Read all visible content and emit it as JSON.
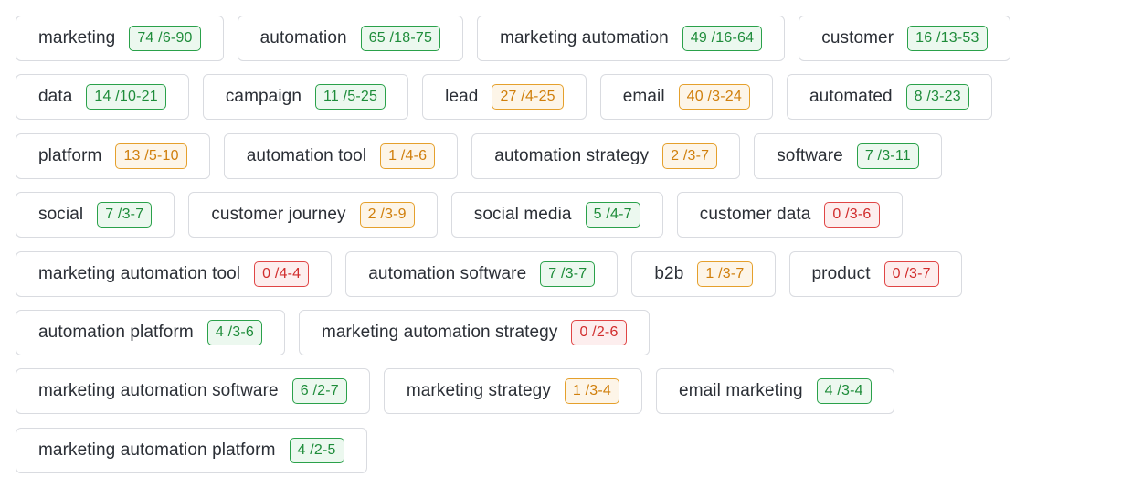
{
  "colors": {
    "green": "#1e8c3a",
    "orange": "#d07f0c",
    "red": "#d12c2c",
    "chip_border": "#d9dbe0",
    "label_text": "#2b2f36"
  },
  "rows": [
    [
      {
        "label": "marketing",
        "badge": "74 /6-90",
        "status": "green"
      },
      {
        "label": "automation",
        "badge": "65 /18-75",
        "status": "green"
      },
      {
        "label": "marketing automation",
        "badge": "49 /16-64",
        "status": "green"
      },
      {
        "label": "customer",
        "badge": "16 /13-53",
        "status": "green"
      }
    ],
    [
      {
        "label": "data",
        "badge": "14 /10-21",
        "status": "green"
      },
      {
        "label": "campaign",
        "badge": "11 /5-25",
        "status": "green"
      },
      {
        "label": "lead",
        "badge": "27 /4-25",
        "status": "orange"
      },
      {
        "label": "email",
        "badge": "40 /3-24",
        "status": "orange"
      },
      {
        "label": "automated",
        "badge": "8 /3-23",
        "status": "green"
      }
    ],
    [
      {
        "label": "platform",
        "badge": "13 /5-10",
        "status": "orange"
      },
      {
        "label": "automation tool",
        "badge": "1 /4-6",
        "status": "orange"
      },
      {
        "label": "automation strategy",
        "badge": "2 /3-7",
        "status": "orange"
      },
      {
        "label": "software",
        "badge": "7 /3-11",
        "status": "green"
      }
    ],
    [
      {
        "label": "social",
        "badge": "7 /3-7",
        "status": "green"
      },
      {
        "label": "customer journey",
        "badge": "2 /3-9",
        "status": "orange"
      },
      {
        "label": "social media",
        "badge": "5 /4-7",
        "status": "green"
      },
      {
        "label": "customer data",
        "badge": "0 /3-6",
        "status": "red"
      }
    ],
    [
      {
        "label": "marketing automation tool",
        "badge": "0 /4-4",
        "status": "red"
      },
      {
        "label": "automation software",
        "badge": "7 /3-7",
        "status": "green"
      },
      {
        "label": "b2b",
        "badge": "1 /3-7",
        "status": "orange"
      },
      {
        "label": "product",
        "badge": "0 /3-7",
        "status": "red"
      }
    ],
    [
      {
        "label": "automation platform",
        "badge": "4 /3-6",
        "status": "green"
      },
      {
        "label": "marketing automation strategy",
        "badge": "0 /2-6",
        "status": "red"
      }
    ],
    [
      {
        "label": "marketing automation software",
        "badge": "6 /2-7",
        "status": "green"
      },
      {
        "label": "marketing strategy",
        "badge": "1 /3-4",
        "status": "orange"
      },
      {
        "label": "email marketing",
        "badge": "4 /3-4",
        "status": "green"
      }
    ],
    [
      {
        "label": "marketing automation platform",
        "badge": "4 /2-5",
        "status": "green"
      }
    ]
  ]
}
